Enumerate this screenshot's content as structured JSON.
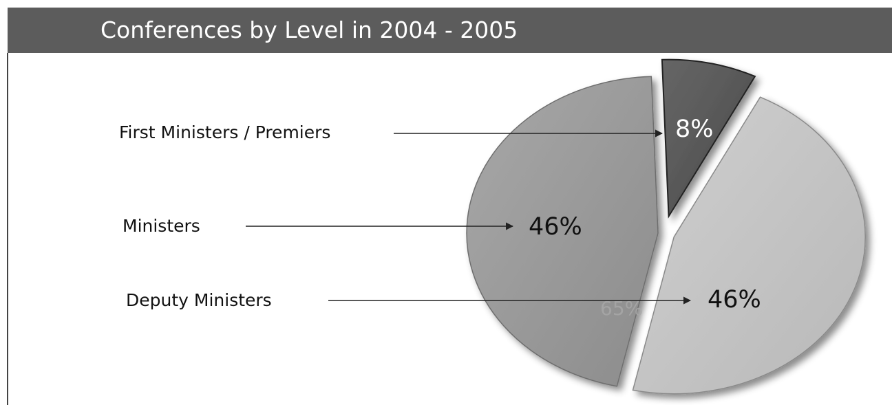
{
  "chart_data": {
    "type": "pie",
    "title": "Conferences by Level in 2004 - 2005",
    "categories": [
      "First Ministers / Premiers",
      "Ministers",
      "Deputy Ministers"
    ],
    "values": [
      8,
      46,
      46
    ],
    "value_labels": [
      "8%",
      "46%",
      "46%"
    ],
    "ghost_label": "65%",
    "colors": [
      "#5a5a5a",
      "#9c9c9c",
      "#c4c4c4"
    ],
    "exploded": true,
    "legend": "left-callouts"
  }
}
